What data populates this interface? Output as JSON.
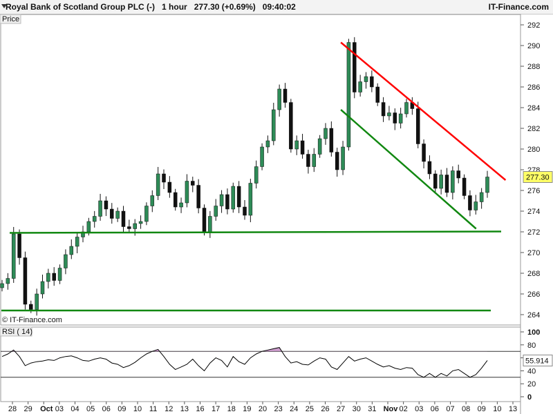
{
  "header": {
    "instrument": "Royal Bank of Scotland Group PLC (-)",
    "timeframe": "1 hour",
    "last": "277.30 (+0.69%)",
    "time": "09:40:02",
    "brand": "IT-Finance.com"
  },
  "colors": {
    "up": "#2e8b57",
    "down": "#111111",
    "resistance": "#ff0000",
    "support": "#118811",
    "rsi_line": "#000000",
    "rsi_fill": "#c084c0"
  },
  "chart_data": [
    {
      "type": "candlestick",
      "panel_label": "Price",
      "watermark": "© IT-Finance.com",
      "ylim": [
        263,
        293
      ],
      "y_ticks": [
        264,
        266,
        268,
        270,
        272,
        274,
        276,
        278,
        280,
        282,
        284,
        286,
        288,
        290,
        292
      ],
      "current_price": "277.30",
      "x_labels": [
        "28",
        "29",
        "Oct",
        "03",
        "04",
        "05",
        "06",
        "09",
        "10",
        "11",
        "12",
        "13",
        "16",
        "17",
        "18",
        "19",
        "20",
        "23",
        "24",
        "25",
        "26",
        "27",
        "30",
        "31",
        "Nov",
        "02",
        "03",
        "06",
        "07",
        "08",
        "09",
        "10",
        "13"
      ],
      "close_series": [
        267.0,
        267.5,
        271.8,
        269.5,
        265.0,
        264.5,
        266.0,
        267.2,
        268.0,
        267.3,
        268.5,
        269.8,
        270.6,
        271.5,
        272.0,
        273.0,
        273.5,
        275.0,
        274.2,
        273.3,
        274.0,
        272.5,
        272.3,
        272.8,
        273.0,
        274.5,
        275.5,
        277.6,
        276.8,
        275.8,
        274.4,
        274.8,
        276.9,
        276.5,
        274.3,
        272.0,
        273.5,
        274.5,
        275.6,
        274.2,
        276.4,
        274.4,
        273.6,
        276.7,
        278.3,
        280.2,
        280.8,
        283.8,
        285.8,
        284.5,
        280.0,
        280.8,
        279.5,
        278.3,
        279.5,
        281.0,
        282.0,
        279.7,
        278.0,
        280.2,
        290.3,
        285.5,
        286.5,
        287.0,
        286.0,
        284.5,
        283.2,
        283.5,
        282.5,
        283.4,
        284.5,
        283.9,
        280.5,
        278.8,
        277.6,
        276.2,
        277.5,
        275.8,
        277.9,
        277.2,
        275.5,
        274.1,
        274.9,
        275.8,
        277.3
      ],
      "resistance_line": {
        "from": [
          "Oct 27",
          290.3
        ],
        "to": [
          "Nov 10",
          277.0
        ]
      },
      "lower_channel_line": {
        "from": [
          "Oct 27",
          283.8
        ],
        "to": [
          "Nov 09",
          272.3
        ]
      },
      "support_lines": [
        271.9,
        264.4
      ]
    },
    {
      "type": "line",
      "panel_label": "RSI ( 14)",
      "ylim": [
        0,
        100
      ],
      "y_ticks": [
        0,
        20,
        40,
        60,
        80,
        100
      ],
      "levels": [
        70,
        30
      ],
      "current_value": "55.914",
      "values": [
        62,
        66,
        72,
        62,
        48,
        52,
        54,
        55,
        57,
        56,
        60,
        62,
        63,
        60,
        56,
        55,
        58,
        60,
        58,
        52,
        50,
        45,
        48,
        53,
        60,
        66,
        70,
        73,
        62,
        50,
        42,
        46,
        50,
        58,
        48,
        40,
        52,
        60,
        56,
        46,
        62,
        54,
        50,
        60,
        66,
        70,
        72,
        74,
        76,
        62,
        52,
        54,
        50,
        49,
        55,
        60,
        58,
        46,
        42,
        52,
        62,
        55,
        58,
        60,
        55,
        50,
        46,
        48,
        44,
        42,
        45,
        44,
        34,
        30,
        36,
        30,
        36,
        32,
        40,
        42,
        36,
        30,
        34,
        44,
        56
      ]
    }
  ]
}
